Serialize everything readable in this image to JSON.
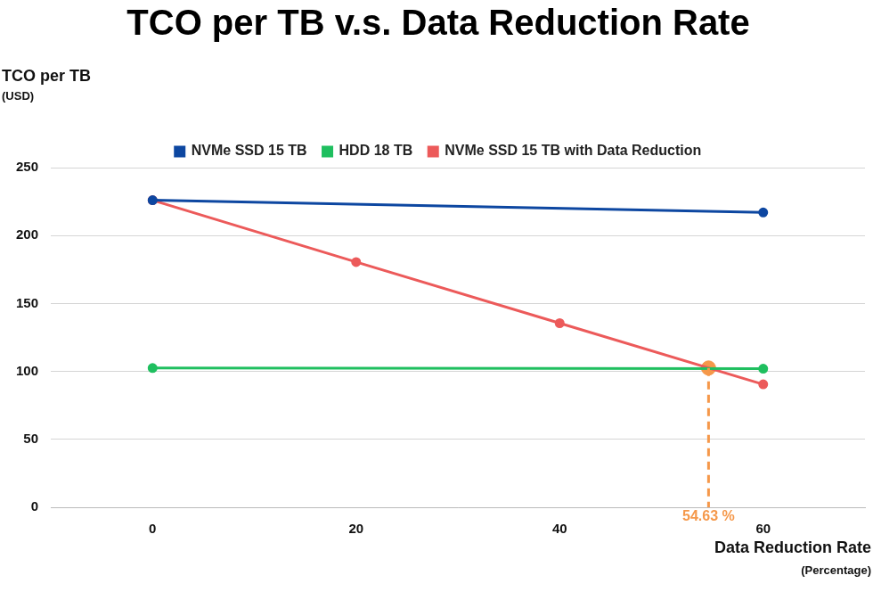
{
  "chart_data": {
    "type": "line",
    "title": "TCO per TB v.s. Data Reduction Rate",
    "y_label": "TCO per TB",
    "y_sublabel": "(USD)",
    "x_label": "Data Reduction Rate",
    "x_sublabel": "(Percentage)",
    "series": [
      {
        "name": "NVMe SSD 15 TB",
        "color": "#0d47a1",
        "x": [
          0,
          60
        ],
        "values": [
          226,
          217
        ]
      },
      {
        "name": "HDD 18 TB",
        "color": "#1fbf5f",
        "x": [
          0,
          60
        ],
        "values": [
          102.5,
          102
        ]
      },
      {
        "name": "NVMe SSD 15 TB with Data Reduction",
        "color": "#ec5a5a",
        "x": [
          0,
          20,
          40,
          60
        ],
        "values": [
          226,
          180.5,
          135.5,
          90.5
        ]
      }
    ],
    "xlim": [
      -10,
      70
    ],
    "xticks": [
      0,
      20,
      40,
      60
    ],
    "ylim": [
      0,
      250
    ],
    "yticks": [
      0,
      50,
      100,
      150,
      200,
      250
    ],
    "grid": true,
    "legend": "top",
    "marker": "circle",
    "annotation": {
      "x": 54.63,
      "y": 102.5,
      "label": "54.63 %",
      "color": "#f5984a",
      "line_style": "dashed"
    }
  }
}
